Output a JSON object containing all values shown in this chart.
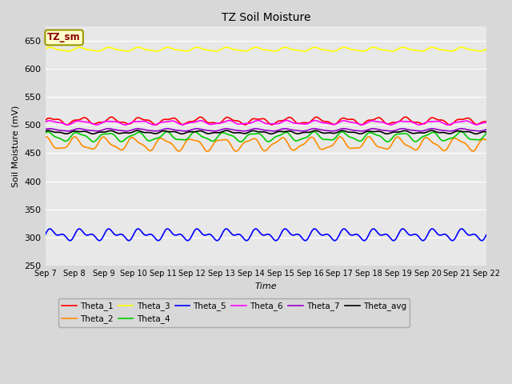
{
  "title": "TZ Soil Moisture",
  "ylabel": "Soil Moisture (mV)",
  "xlabel": "Time",
  "ylim": [
    250,
    675
  ],
  "yticks": [
    250,
    300,
    350,
    400,
    450,
    500,
    550,
    600,
    650
  ],
  "xtick_labels": [
    "Sep 7",
    "Sep 8",
    "Sep 9",
    "Sep 10",
    "Sep 11",
    "Sep 12",
    "Sep 13",
    "Sep 14",
    "Sep 15",
    "Sep 16",
    "Sep 17",
    "Sep 18",
    "Sep 19",
    "Sep 20",
    "Sep 21",
    "Sep 22"
  ],
  "n_points": 720,
  "series": [
    {
      "name": "Theta_1",
      "color": "#ff0000",
      "base": 507,
      "amp": 5,
      "freq": 1.0,
      "phase": 0.0,
      "amp2": 2,
      "freq2": 2.3,
      "phase2": 0.5
    },
    {
      "name": "Theta_2",
      "color": "#ff8c00",
      "base": 466,
      "amp": 10,
      "freq": 1.0,
      "phase": 1.5,
      "amp2": 3,
      "freq2": 2.1,
      "phase2": 1.0
    },
    {
      "name": "Theta_3",
      "color": "#ffff00",
      "base": 634,
      "amp": 3,
      "freq": 1.0,
      "phase": 0.3,
      "amp2": 1,
      "freq2": 2.0,
      "phase2": 0.0
    },
    {
      "name": "Theta_4",
      "color": "#00cc00",
      "base": 479,
      "amp": 7,
      "freq": 1.0,
      "phase": 0.8,
      "amp2": 2,
      "freq2": 2.2,
      "phase2": 0.7
    },
    {
      "name": "Theta_5",
      "color": "#0000ff",
      "base": 305,
      "amp": 7,
      "freq": 1.0,
      "phase": 0.0,
      "amp2": 5,
      "freq2": 2.0,
      "phase2": 0.0
    },
    {
      "name": "Theta_6",
      "color": "#ff00ff",
      "base": 504,
      "amp": 3,
      "freq": 1.0,
      "phase": 0.2,
      "amp2": 1,
      "freq2": 2.1,
      "phase2": 0.3
    },
    {
      "name": "Theta_7",
      "color": "#9900cc",
      "base": 491,
      "amp": 2,
      "freq": 1.0,
      "phase": 0.4,
      "amp2": 0.5,
      "freq2": 2.0,
      "phase2": 0.2
    },
    {
      "name": "Theta_avg",
      "color": "#000000",
      "base": 487,
      "amp": 2,
      "freq": 1.0,
      "phase": 0.6,
      "amp2": 1,
      "freq2": 2.3,
      "phase2": 0.4
    }
  ],
  "legend_label": "TZ_sm",
  "legend_label_color": "#8b0000",
  "legend_box_facecolor": "#ffffcc",
  "legend_box_edgecolor": "#999900",
  "fig_facecolor": "#d8d8d8",
  "axes_facecolor": "#e8e8e8",
  "grid_color": "#ffffff",
  "linewidth": 1.2
}
